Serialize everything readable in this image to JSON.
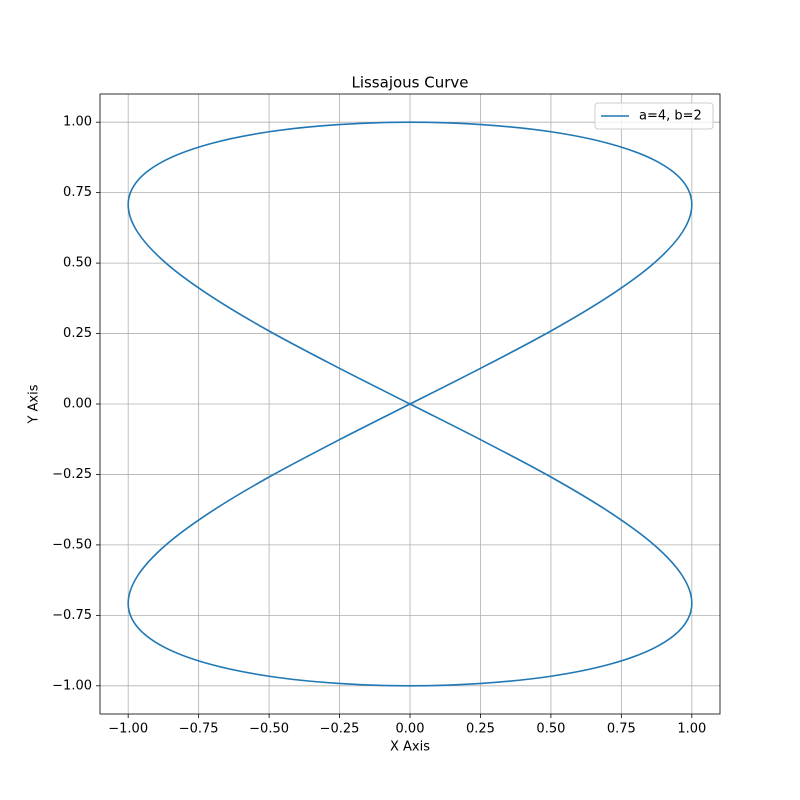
{
  "chart_data": {
    "type": "line",
    "title": "Lissajous Curve",
    "x_label": "X Axis",
    "y_label": "Y Axis",
    "series": [
      {
        "name": "a=4, b=2",
        "color": "#1f77b4",
        "x": [
          0,
          0.259,
          0.5,
          0.707,
          0.866,
          0.966,
          1,
          0.966,
          0.866,
          0.707,
          0.5,
          0.259,
          0,
          -0.259,
          -0.5,
          -0.707,
          -0.866,
          -0.966,
          -1,
          -0.966,
          -0.866,
          -0.707,
          -0.5,
          -0.259,
          0,
          0.259,
          0.5,
          0.707,
          0.866,
          0.966,
          1,
          0.966,
          0.866,
          0.707,
          0.5,
          0.259,
          0,
          -0.259,
          -0.5,
          -0.707,
          -0.866,
          -0.966,
          -1,
          -0.966,
          -0.866,
          -0.707,
          -0.5,
          -0.259,
          0
        ],
        "values": [
          0,
          0.131,
          0.259,
          0.383,
          0.5,
          0.609,
          0.707,
          0.793,
          0.866,
          0.924,
          0.966,
          0.991,
          1,
          0.991,
          0.966,
          0.924,
          0.866,
          0.793,
          0.707,
          0.609,
          0.5,
          0.383,
          0.259,
          0.131,
          0,
          -0.131,
          -0.259,
          -0.383,
          -0.5,
          -0.609,
          -0.707,
          -0.793,
          -0.866,
          -0.924,
          -0.966,
          -0.991,
          -1,
          -0.991,
          -0.966,
          -0.924,
          -0.866,
          -0.793,
          -0.707,
          -0.609,
          -0.5,
          -0.383,
          -0.259,
          -0.131,
          0
        ]
      }
    ],
    "xlim": [
      -1.1,
      1.1
    ],
    "ylim": [
      -1.1,
      1.1
    ],
    "xticks": [
      {
        "value": -1,
        "label": "−1.00"
      },
      {
        "value": -0.75,
        "label": "−0.75"
      },
      {
        "value": -0.5,
        "label": "−0.50"
      },
      {
        "value": -0.25,
        "label": "−0.25"
      },
      {
        "value": 0,
        "label": "0.00"
      },
      {
        "value": 0.25,
        "label": "0.25"
      },
      {
        "value": 0.5,
        "label": "0.50"
      },
      {
        "value": 0.75,
        "label": "0.75"
      },
      {
        "value": 1,
        "label": "1.00"
      }
    ],
    "yticks": [
      {
        "value": -1,
        "label": "−1.00"
      },
      {
        "value": -0.75,
        "label": "−0.75"
      },
      {
        "value": -0.5,
        "label": "−0.50"
      },
      {
        "value": -0.25,
        "label": "−0.25"
      },
      {
        "value": 0,
        "label": "0.00"
      },
      {
        "value": 0.25,
        "label": "0.25"
      },
      {
        "value": 0.5,
        "label": "0.50"
      },
      {
        "value": 0.75,
        "label": "0.75"
      },
      {
        "value": 1,
        "label": "1.00"
      }
    ],
    "grid": true,
    "legend": "upper right"
  }
}
